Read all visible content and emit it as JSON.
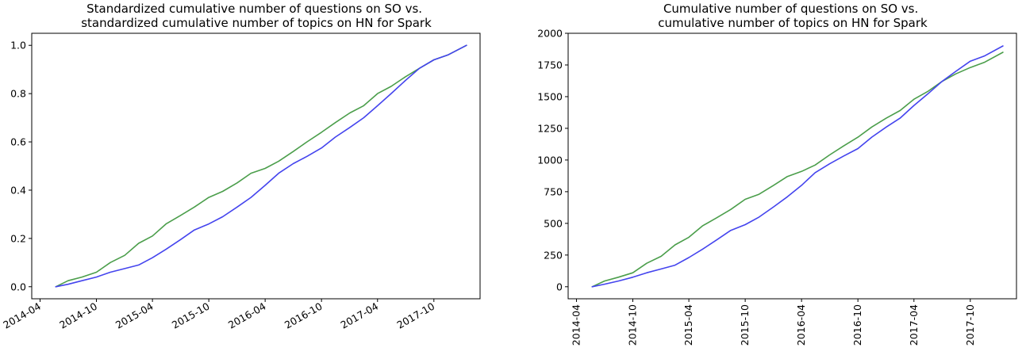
{
  "chart_data": [
    {
      "type": "line",
      "title": "Standardized cumulative number of questions on SO vs.\nstandardized cumulative number of topics on HN for Spark",
      "xlabel": "",
      "ylabel": "",
      "x_tick_labels": [
        "2014-04",
        "2014-10",
        "2015-04",
        "2015-10",
        "2016-04",
        "2016-10",
        "2017-04",
        "2017-10"
      ],
      "x_tick_dates": [
        "2014-04-01",
        "2014-10-01",
        "2015-04-01",
        "2015-10-01",
        "2016-04-01",
        "2016-10-01",
        "2017-04-01",
        "2017-10-01"
      ],
      "xlim": [
        "2014-03-05",
        "2018-02-28"
      ],
      "ylim": [
        -0.05,
        1.05
      ],
      "y_ticks": [
        0.0,
        0.2,
        0.4,
        0.6,
        0.8,
        1.0
      ],
      "y_tick_labels": [
        "0.0",
        "0.2",
        "0.4",
        "0.6",
        "0.8",
        "1.0"
      ],
      "x_tick_rotation": "30deg",
      "grid": false,
      "legend": "none",
      "series": [
        {
          "color": "#4b9e4b",
          "x": [
            "2014-05-22",
            "2014-07-01",
            "2014-08-15",
            "2014-10-01",
            "2014-11-15",
            "2015-01-01",
            "2015-02-15",
            "2015-04-01",
            "2015-05-15",
            "2015-07-01",
            "2015-08-15",
            "2015-10-01",
            "2015-11-15",
            "2016-01-01",
            "2016-02-15",
            "2016-04-01",
            "2016-05-15",
            "2016-07-01",
            "2016-08-15",
            "2016-10-01",
            "2016-11-15",
            "2017-01-01",
            "2017-02-15",
            "2017-04-01",
            "2017-05-15",
            "2017-07-01",
            "2017-08-15",
            "2017-10-01",
            "2017-11-15",
            "2018-01-15"
          ],
          "values": [
            0.0,
            0.025,
            0.04,
            0.06,
            0.1,
            0.13,
            0.18,
            0.21,
            0.26,
            0.295,
            0.33,
            0.37,
            0.395,
            0.43,
            0.47,
            0.49,
            0.52,
            0.56,
            0.6,
            0.64,
            0.68,
            0.72,
            0.75,
            0.8,
            0.83,
            0.87,
            0.905,
            0.94,
            0.96,
            1.0
          ]
        },
        {
          "color": "#4444ee",
          "x": [
            "2014-05-22",
            "2014-07-01",
            "2014-08-15",
            "2014-10-01",
            "2014-11-15",
            "2015-01-01",
            "2015-02-15",
            "2015-04-01",
            "2015-05-15",
            "2015-07-01",
            "2015-08-15",
            "2015-10-01",
            "2015-11-15",
            "2016-01-01",
            "2016-02-15",
            "2016-04-01",
            "2016-05-15",
            "2016-07-01",
            "2016-08-15",
            "2016-10-01",
            "2016-11-15",
            "2017-01-01",
            "2017-02-15",
            "2017-04-01",
            "2017-05-15",
            "2017-07-01",
            "2017-08-15",
            "2017-10-01",
            "2017-11-15",
            "2018-01-15"
          ],
          "values": [
            0.0,
            0.01,
            0.025,
            0.04,
            0.06,
            0.075,
            0.09,
            0.12,
            0.155,
            0.195,
            0.235,
            0.26,
            0.29,
            0.33,
            0.37,
            0.42,
            0.47,
            0.51,
            0.54,
            0.575,
            0.62,
            0.66,
            0.7,
            0.75,
            0.8,
            0.855,
            0.905,
            0.94,
            0.96,
            1.0
          ]
        }
      ]
    },
    {
      "type": "line",
      "title": "Cumulative number of questions on SO vs.\ncumulative number of topics on HN for Spark",
      "xlabel": "",
      "ylabel": "",
      "x_tick_labels": [
        "2014-04",
        "2014-10",
        "2015-04",
        "2015-10",
        "2016-04",
        "2016-10",
        "2017-04",
        "2017-10"
      ],
      "x_tick_dates": [
        "2014-04-01",
        "2014-10-01",
        "2015-04-01",
        "2015-10-01",
        "2016-04-01",
        "2016-10-01",
        "2017-04-01",
        "2017-10-01"
      ],
      "xlim": [
        "2014-03-05",
        "2018-02-28"
      ],
      "ylim": [
        -95,
        2000
      ],
      "y_ticks": [
        0,
        250,
        500,
        750,
        1000,
        1250,
        1500,
        1750,
        2000
      ],
      "y_tick_labels": [
        "0",
        "250",
        "500",
        "750",
        "1000",
        "1250",
        "1500",
        "1750",
        "2000"
      ],
      "x_tick_rotation": "90deg",
      "grid": false,
      "legend": "none",
      "series": [
        {
          "color": "#4b9e4b",
          "x": [
            "2014-05-22",
            "2014-07-01",
            "2014-08-15",
            "2014-10-01",
            "2014-11-15",
            "2015-01-01",
            "2015-02-15",
            "2015-04-01",
            "2015-05-15",
            "2015-07-01",
            "2015-08-15",
            "2015-10-01",
            "2015-11-15",
            "2016-01-01",
            "2016-02-15",
            "2016-04-01",
            "2016-05-15",
            "2016-07-01",
            "2016-08-15",
            "2016-10-01",
            "2016-11-15",
            "2017-01-01",
            "2017-02-15",
            "2017-04-01",
            "2017-05-15",
            "2017-07-01",
            "2017-08-15",
            "2017-10-01",
            "2017-11-15",
            "2018-01-15"
          ],
          "values": [
            0,
            45,
            75,
            110,
            185,
            240,
            330,
            390,
            480,
            545,
            610,
            690,
            730,
            800,
            870,
            910,
            960,
            1040,
            1110,
            1180,
            1260,
            1330,
            1390,
            1480,
            1540,
            1620,
            1680,
            1730,
            1770,
            1850
          ]
        },
        {
          "color": "#4444ee",
          "x": [
            "2014-05-22",
            "2014-07-01",
            "2014-08-15",
            "2014-10-01",
            "2014-11-15",
            "2015-01-01",
            "2015-02-15",
            "2015-04-01",
            "2015-05-15",
            "2015-07-01",
            "2015-08-15",
            "2015-10-01",
            "2015-11-15",
            "2016-01-01",
            "2016-02-15",
            "2016-04-01",
            "2016-05-15",
            "2016-07-01",
            "2016-08-15",
            "2016-10-01",
            "2016-11-15",
            "2017-01-01",
            "2017-02-15",
            "2017-04-01",
            "2017-05-15",
            "2017-07-01",
            "2017-08-15",
            "2017-10-01",
            "2017-11-15",
            "2018-01-15"
          ],
          "values": [
            0,
            20,
            45,
            75,
            110,
            140,
            170,
            230,
            295,
            370,
            445,
            490,
            550,
            630,
            710,
            800,
            900,
            970,
            1030,
            1090,
            1180,
            1260,
            1330,
            1430,
            1520,
            1620,
            1700,
            1780,
            1820,
            1900
          ]
        }
      ]
    }
  ]
}
